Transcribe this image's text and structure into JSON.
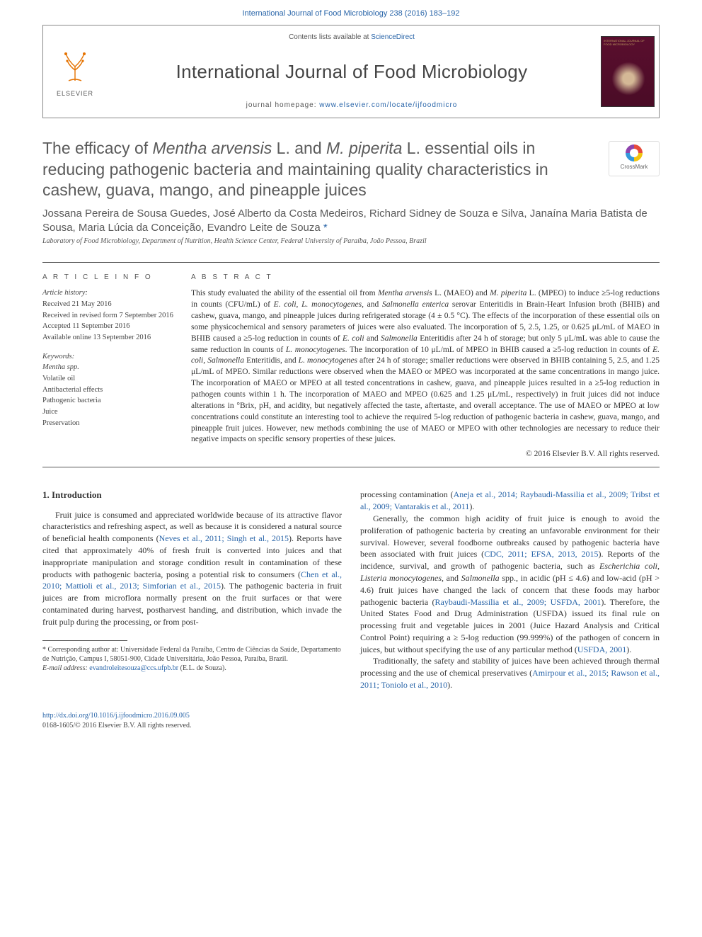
{
  "top_citation": "International Journal of Food Microbiology 238 (2016) 183–192",
  "header": {
    "contents_prefix": "Contents lists available at ",
    "contents_link": "ScienceDirect",
    "journal_name": "International Journal of Food Microbiology",
    "homepage_prefix": "journal homepage: ",
    "homepage_url": "www.elsevier.com/locate/ijfoodmicro",
    "elsevier_label": "ELSEVIER",
    "cover_text": "INTERNATIONAL JOURNAL OF FOOD MICROBIOLOGY"
  },
  "crossmark_label": "CrossMark",
  "title_parts": {
    "p1": "The efficacy of ",
    "p2": "Mentha arvensis",
    "p3": " L. and ",
    "p4": "M. piperita",
    "p5": " L. essential oils in reducing pathogenic bacteria and maintaining quality characteristics in cashew, guava, mango, and pineapple juices"
  },
  "authors": "Jossana Pereira de Sousa Guedes, José Alberto da Costa Medeiros, Richard Sidney de Souza e Silva, Janaína Maria Batista de Sousa, Maria Lúcia da Conceição, Evandro Leite de Souza ",
  "corr_mark": "*",
  "affiliation": "Laboratory of Food Microbiology, Department of Nutrition, Health Science Center, Federal University of Paraíba, João Pessoa, Brazil",
  "article_info": {
    "heading": "A R T I C L E   I N F O",
    "history_label": "Article history:",
    "received": "Received 21 May 2016",
    "revised": "Received in revised form 7 September 2016",
    "accepted": "Accepted 11 September 2016",
    "online": "Available online 13 September 2016",
    "keywords_label": "Keywords:",
    "keywords": [
      "Mentha spp.",
      "Volatile oil",
      "Antibacterial effects",
      "Pathogenic bacteria",
      "Juice",
      "Preservation"
    ]
  },
  "abstract": {
    "heading": "A B S T R A C T",
    "text_html": "This study evaluated the ability of the essential oil from <em>Mentha arvensis</em> L. (MAEO) and <em>M. piperita</em> L. (MPEO) to induce ≥5-log reductions in counts (CFU/mL) of <em>E. coli</em>, <em>L. monocytogenes</em>, and <em>Salmonella enterica</em> serovar Enteritidis in Brain-Heart Infusion broth (BHIB) and cashew, guava, mango, and pineapple juices during refrigerated storage (4 ± 0.5 °C). The effects of the incorporation of these essential oils on some physicochemical and sensory parameters of juices were also evaluated. The incorporation of 5, 2.5, 1.25, or 0.625 μL/mL of MAEO in BHIB caused a ≥5-log reduction in counts of <em>E. coli</em> and <em>Salmonella</em> Enteritidis after 24 h of storage; but only 5 μL/mL was able to cause the same reduction in counts of <em>L. monocytogenes</em>. The incorporation of 10 μL/mL of MPEO in BHIB caused a ≥5-log reduction in counts of <em>E. coli</em>, <em>Salmonella</em> Enteritidis, and <em>L. monocytogenes</em> after 24 h of storage; smaller reductions were observed in BHIB containing 5, 2.5, and 1.25 μL/mL of MPEO. Similar reductions were observed when the MAEO or MPEO was incorporated at the same concentrations in mango juice. The incorporation of MAEO or MPEO at all tested concentrations in cashew, guava, and pineapple juices resulted in a ≥5-log reduction in pathogen counts within 1 h. The incorporation of MAEO and MPEO (0.625 and 1.25 μL/mL, respectively) in fruit juices did not induce alterations in °Brix, pH, and acidity, but negatively affected the taste, aftertaste, and overall acceptance. The use of MAEO or MPEO at low concentrations could constitute an interesting tool to achieve the required 5-log reduction of pathogenic bacteria in cashew, guava, mango, and pineapple fruit juices. However, new methods combining the use of MAEO or MPEO with other technologies are necessary to reduce their negative impacts on specific sensory properties of these juices.",
    "copyright": "© 2016 Elsevier B.V. All rights reserved."
  },
  "intro": {
    "heading": "1. Introduction",
    "left_html": "Fruit juice is consumed and appreciated worldwide because of its attractive flavor characteristics and refreshing aspect, as well as because it is considered a natural source of beneficial health components (<a class='cite'>Neves et al., 2011; Singh et al., 2015</a>). Reports have cited that approximately 40% of fresh fruit is converted into juices and that inappropriate manipulation and storage condition result in contamination of these products with pathogenic bacteria, posing a potential risk to consumers (<a class='cite'>Chen et al., 2010; Mattioli et al., 2013; Simforian et al., 2015</a>). The pathogenic bacteria in fruit juices are from microflora normally present on the fruit surfaces or that were contaminated during harvest, postharvest handing, and distribution, which invade the fruit pulp during the processing, or from post-",
    "right1_html": "processing contamination (<a class='cite'>Aneja et al., 2014; Raybaudi-Massilia et al., 2009; Tribst et al., 2009; Vantarakis et al., 2011</a>).",
    "right2_html": "Generally, the common high acidity of fruit juice is enough to avoid the proliferation of pathogenic bacteria by creating an unfavorable environment for their survival. However, several foodborne outbreaks caused by pathogenic bacteria have been associated with fruit juices (<a class='cite'>CDC, 2011; EFSA, 2013, 2015</a>). Reports of the incidence, survival, and growth of pathogenic bacteria, such as <em>Escherichia coli</em>, <em>Listeria monocytogenes</em>, and <em>Salmonella</em> spp., in acidic (pH ≤ 4.6) and low-acid (pH &gt; 4.6) fruit juices have changed the lack of concern that these foods may harbor pathogenic bacteria (<a class='cite'>Raybaudi-Massilia et al., 2009; USFDA, 2001</a>). Therefore, the United States Food and Drug Administration (USFDA) issued its final rule on processing fruit and vegetable juices in 2001 (Juice Hazard Analysis and Critical Control Point) requiring a ≥ 5-log reduction (99.999%) of the pathogen of concern in juices, but without specifying the use of any particular method (<a class='cite'>USFDA, 2001</a>).",
    "right3_html": "Traditionally, the safety and stability of juices have been achieved through thermal processing and the use of chemical preservatives (<a class='cite'>Amirpour et al., 2015; Rawson et al., 2011; Toniolo et al., 2010</a>)."
  },
  "footnote": {
    "corr_html": "* Corresponding author at: Universidade Federal da Paraíba, Centro de Ciências da Saúde, Departamento de Nutrição, Campus I, 58051-900, Cidade Universitária, João Pessoa, Paraíba, Brazil.",
    "email_label": "E-mail address: ",
    "email": "evandroleitesouza@ccs.ufpb.br",
    "email_suffix": " (E.L. de Souza)."
  },
  "bottom": {
    "doi": "http://dx.doi.org/10.1016/j.ijfoodmicro.2016.09.005",
    "issn_line": "0168-1605/© 2016 Elsevier B.V. All rights reserved."
  },
  "colors": {
    "link": "#2864a8",
    "text": "#333333",
    "heading_gray": "#5a5a5a"
  }
}
